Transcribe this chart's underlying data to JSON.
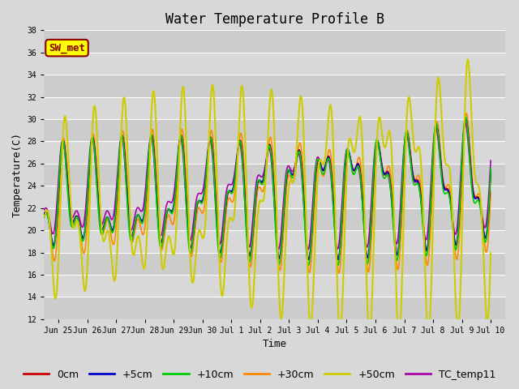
{
  "title": "Water Temperature Profile B",
  "xlabel": "Time",
  "ylabel": "Temperature(C)",
  "ylim": [
    12,
    38
  ],
  "annotation": "SW_met",
  "annotation_color": "#8B0000",
  "annotation_bg": "#FFFF00",
  "background_color": "#D8D8D8",
  "plot_bg": "#D8D8D8",
  "stripe_light": "#D8D8D8",
  "stripe_dark": "#C8C8C8",
  "grid_color": "#FFFFFF",
  "xtick_labels": [
    "Jun 25",
    "Jun 26",
    "Jun 27",
    "Jun 28",
    "Jun 29",
    "Jun 30",
    "Jul 1",
    "Jul 2",
    "Jul 3",
    "Jul 4",
    "Jul 5",
    "Jul 6",
    "Jul 7",
    "Jul 8",
    "Jul 9",
    "Jul 10"
  ],
  "legend": [
    "0cm",
    "+5cm",
    "+10cm",
    "+30cm",
    "+50cm",
    "TC_temp11"
  ],
  "line_colors": [
    "#CC0000",
    "#0000CC",
    "#00CC00",
    "#FF8800",
    "#CCCC00",
    "#AA00AA"
  ],
  "line_widths": [
    1.2,
    1.2,
    1.2,
    1.2,
    1.5,
    1.2
  ],
  "title_fontsize": 12,
  "axis_fontsize": 9,
  "tick_fontsize": 7,
  "legend_fontsize": 9
}
